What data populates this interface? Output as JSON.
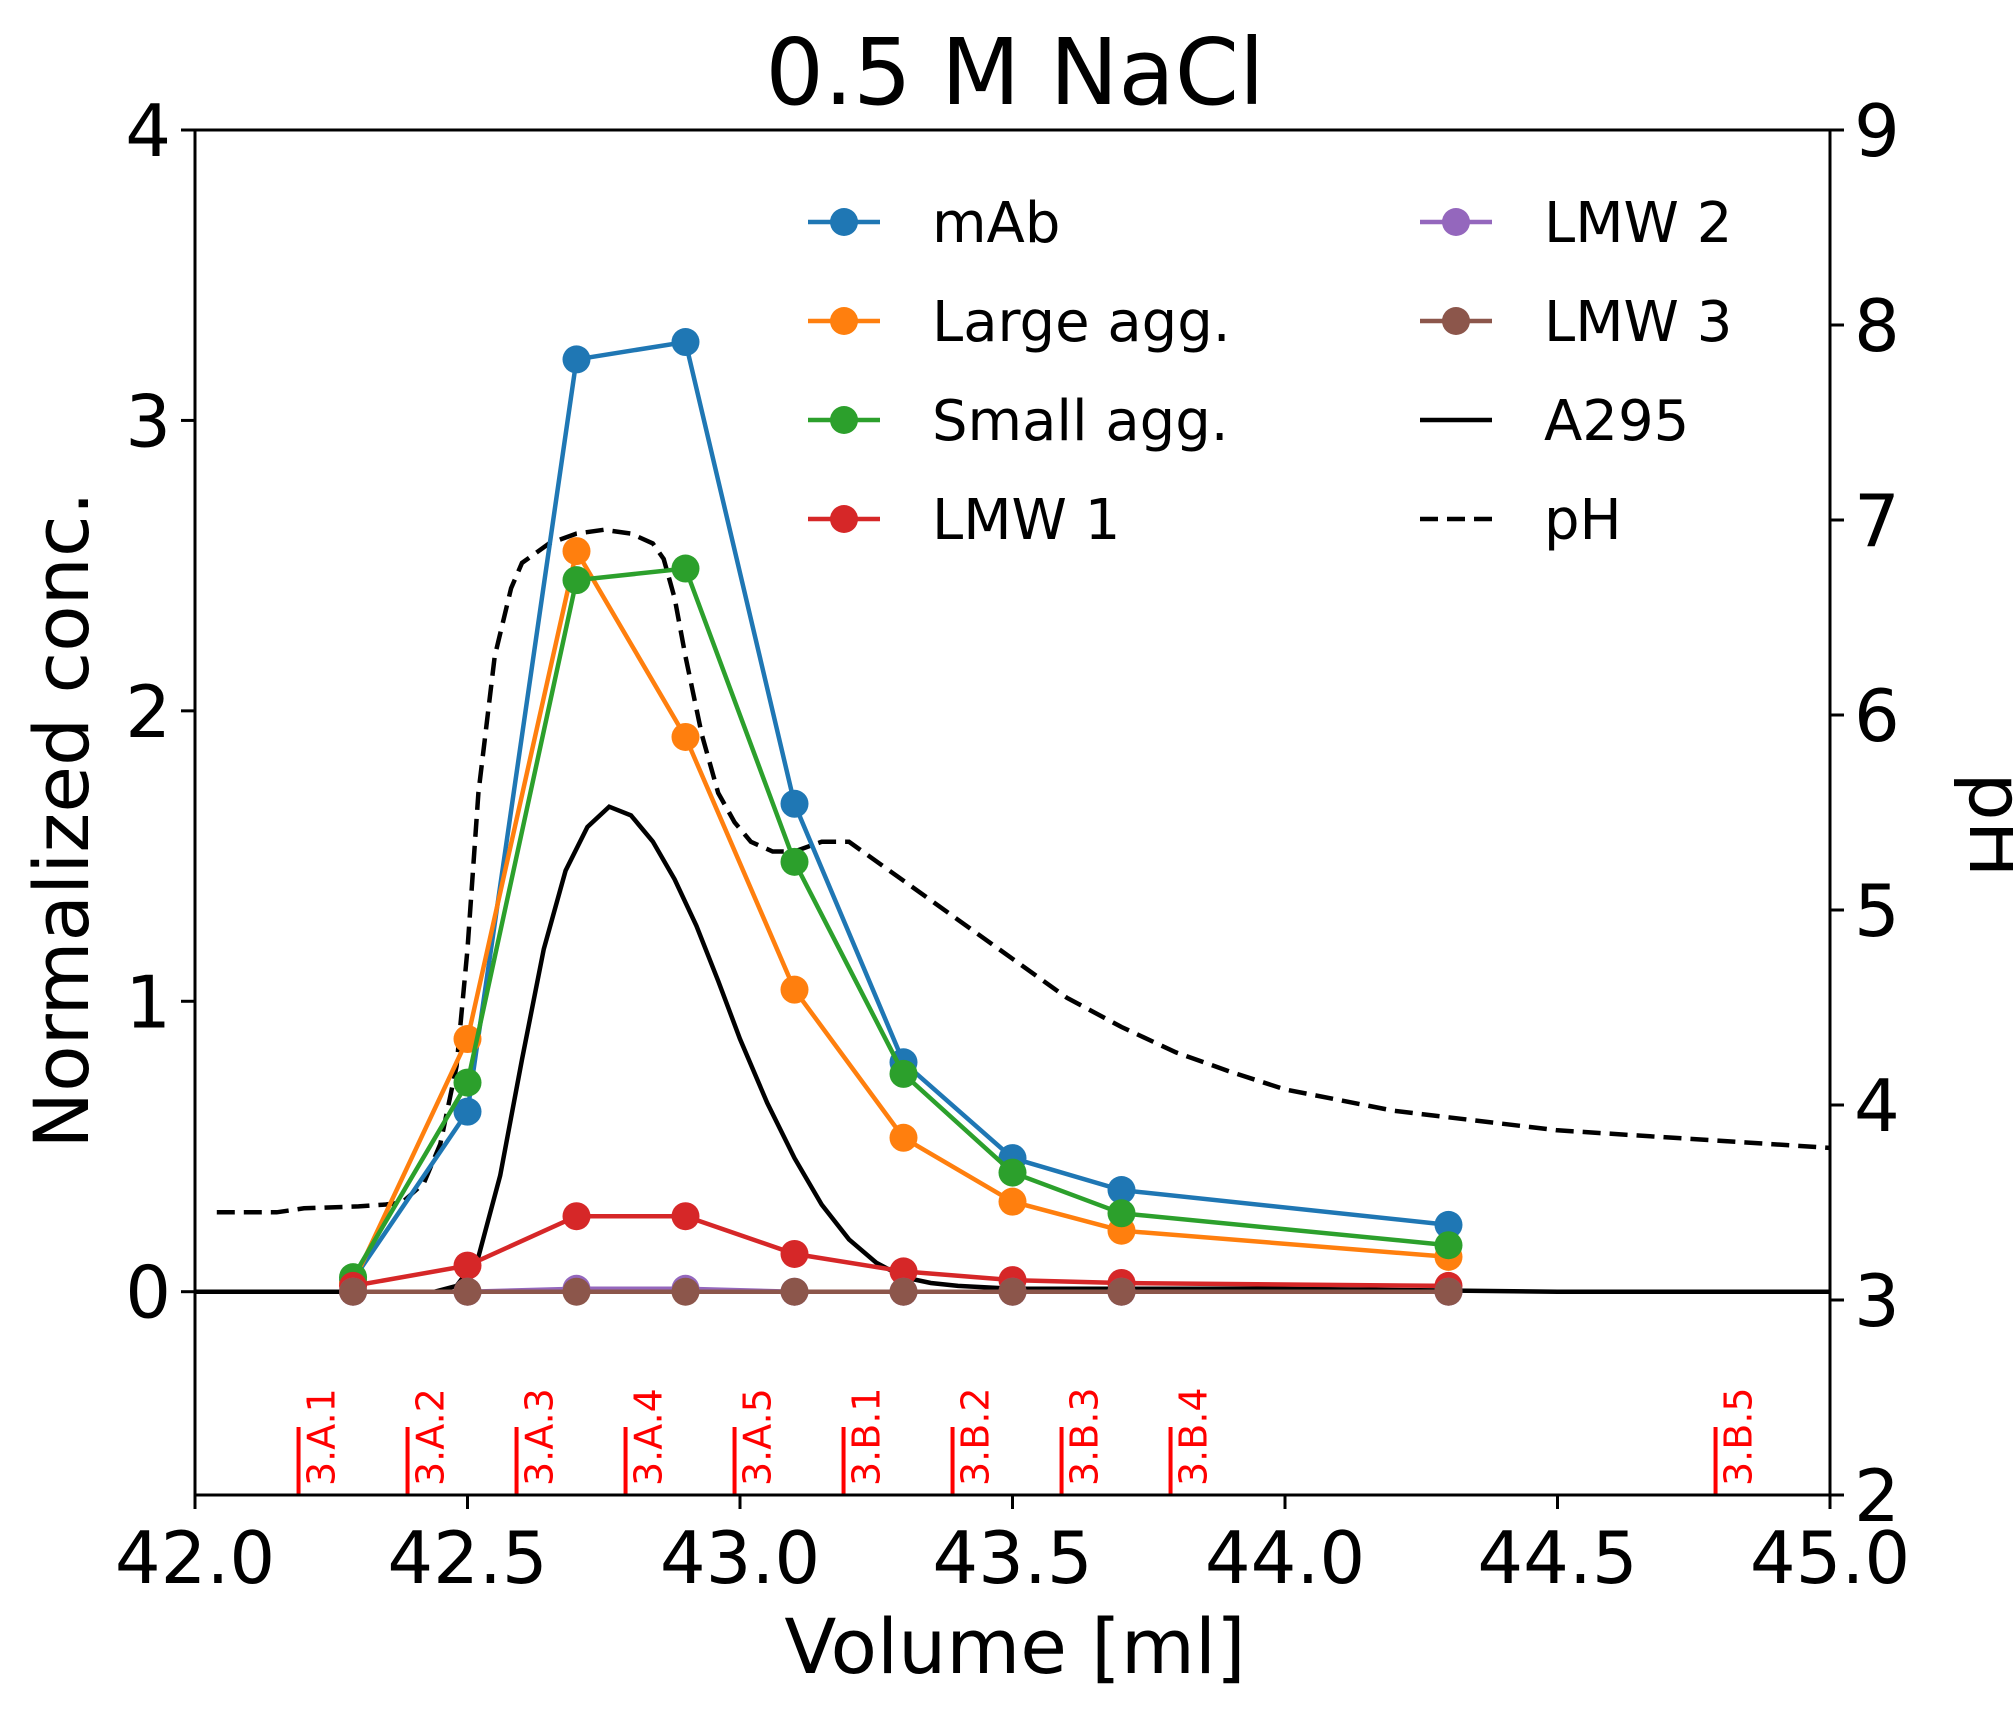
{
  "chart_data": {
    "type": "line",
    "title": "0.5 M NaCl",
    "xlabel": "Volume [ml]",
    "ylabel": "Normalized conc.",
    "y2label": "pH",
    "xlim": [
      42.0,
      45.0
    ],
    "ylim": [
      -0.7,
      4.0
    ],
    "y2lim": [
      2,
      9
    ],
    "xticks": [
      "42.0",
      "42.5",
      "43.0",
      "43.5",
      "44.0",
      "44.5",
      "45.0"
    ],
    "yticks": [
      "0",
      "1",
      "2",
      "3",
      "4"
    ],
    "y2ticks": [
      "2",
      "3",
      "4",
      "5",
      "6",
      "7",
      "8",
      "9"
    ],
    "legend_position": "upper-right",
    "grid": false,
    "x": [
      42.29,
      42.5,
      42.7,
      42.9,
      43.1,
      43.3,
      43.5,
      43.7,
      44.3
    ],
    "series": [
      {
        "name": "mAb",
        "color": "#1f77b4",
        "marker": "circle",
        "values": [
          0.04,
          0.62,
          3.21,
          3.27,
          1.68,
          0.79,
          0.46,
          0.35,
          0.23
        ]
      },
      {
        "name": "Large agg.",
        "color": "#ff7f0e",
        "marker": "circle",
        "values": [
          0.03,
          0.87,
          2.55,
          1.91,
          1.04,
          0.53,
          0.31,
          0.21,
          0.12
        ]
      },
      {
        "name": "Small agg.",
        "color": "#2ca02c",
        "marker": "circle",
        "values": [
          0.05,
          0.72,
          2.45,
          2.49,
          1.48,
          0.75,
          0.41,
          0.27,
          0.16
        ]
      },
      {
        "name": "LMW 1",
        "color": "#d62728",
        "marker": "circle",
        "values": [
          0.02,
          0.09,
          0.26,
          0.26,
          0.13,
          0.07,
          0.04,
          0.03,
          0.02
        ]
      },
      {
        "name": "LMW 2",
        "color": "#9467bd",
        "marker": "circle",
        "values": [
          0.0,
          0.0,
          0.01,
          0.01,
          0.0,
          0.0,
          0.0,
          0.0,
          0.0
        ]
      },
      {
        "name": "LMW 3",
        "color": "#8c564b",
        "marker": "circle",
        "values": [
          0.0,
          0.0,
          0.0,
          0.0,
          0.0,
          0.0,
          0.0,
          0.0,
          0.0
        ]
      }
    ],
    "a295": {
      "name": "A295",
      "color": "#000000",
      "x": [
        42.0,
        42.4,
        42.44,
        42.48,
        42.52,
        42.56,
        42.6,
        42.64,
        42.68,
        42.72,
        42.76,
        42.8,
        42.84,
        42.88,
        42.92,
        42.96,
        43.0,
        43.05,
        43.1,
        43.15,
        43.2,
        43.25,
        43.3,
        43.35,
        43.4,
        43.5,
        43.6,
        44.0,
        44.5,
        45.0
      ],
      "values": [
        0.0,
        0.0,
        0.0,
        0.02,
        0.12,
        0.4,
        0.8,
        1.18,
        1.45,
        1.6,
        1.67,
        1.64,
        1.55,
        1.42,
        1.26,
        1.07,
        0.87,
        0.65,
        0.46,
        0.3,
        0.18,
        0.1,
        0.05,
        0.03,
        0.02,
        0.01,
        0.01,
        0.01,
        0.0,
        0.0
      ]
    },
    "ph": {
      "name": "pH",
      "color": "#000000",
      "x": [
        42.04,
        42.1,
        42.15,
        42.2,
        42.3,
        42.35,
        42.38,
        42.42,
        42.45,
        42.48,
        42.5,
        42.52,
        42.55,
        42.58,
        42.6,
        42.65,
        42.7,
        42.75,
        42.8,
        42.84,
        42.86,
        42.88,
        42.9,
        42.93,
        42.96,
        42.99,
        43.02,
        43.06,
        43.1,
        43.15,
        43.2,
        43.3,
        43.4,
        43.5,
        43.6,
        43.7,
        43.8,
        43.9,
        44.0,
        44.2,
        44.5,
        45.0
      ],
      "values": [
        3.45,
        3.45,
        3.45,
        3.47,
        3.48,
        3.49,
        3.5,
        3.6,
        3.8,
        4.2,
        4.8,
        5.6,
        6.3,
        6.65,
        6.78,
        6.88,
        6.93,
        6.95,
        6.93,
        6.88,
        6.8,
        6.6,
        6.3,
        5.9,
        5.6,
        5.45,
        5.35,
        5.3,
        5.3,
        5.35,
        5.35,
        5.15,
        4.95,
        4.75,
        4.55,
        4.4,
        4.27,
        4.17,
        4.08,
        3.97,
        3.87,
        3.78
      ]
    },
    "fractions": {
      "color": "#ff0000",
      "items": [
        {
          "label": "3.A.1",
          "x": 42.19
        },
        {
          "label": "3.A.2",
          "x": 42.39
        },
        {
          "label": "3.A.3",
          "x": 42.59
        },
        {
          "label": "3.A.4",
          "x": 42.79
        },
        {
          "label": "3.A.5",
          "x": 42.99
        },
        {
          "label": "3.B.1",
          "x": 43.19
        },
        {
          "label": "3.B.2",
          "x": 43.39
        },
        {
          "label": "3.B.3",
          "x": 43.59
        },
        {
          "label": "3.B.4",
          "x": 43.79
        },
        {
          "label": "3.B.5",
          "x": 44.79
        }
      ]
    }
  }
}
